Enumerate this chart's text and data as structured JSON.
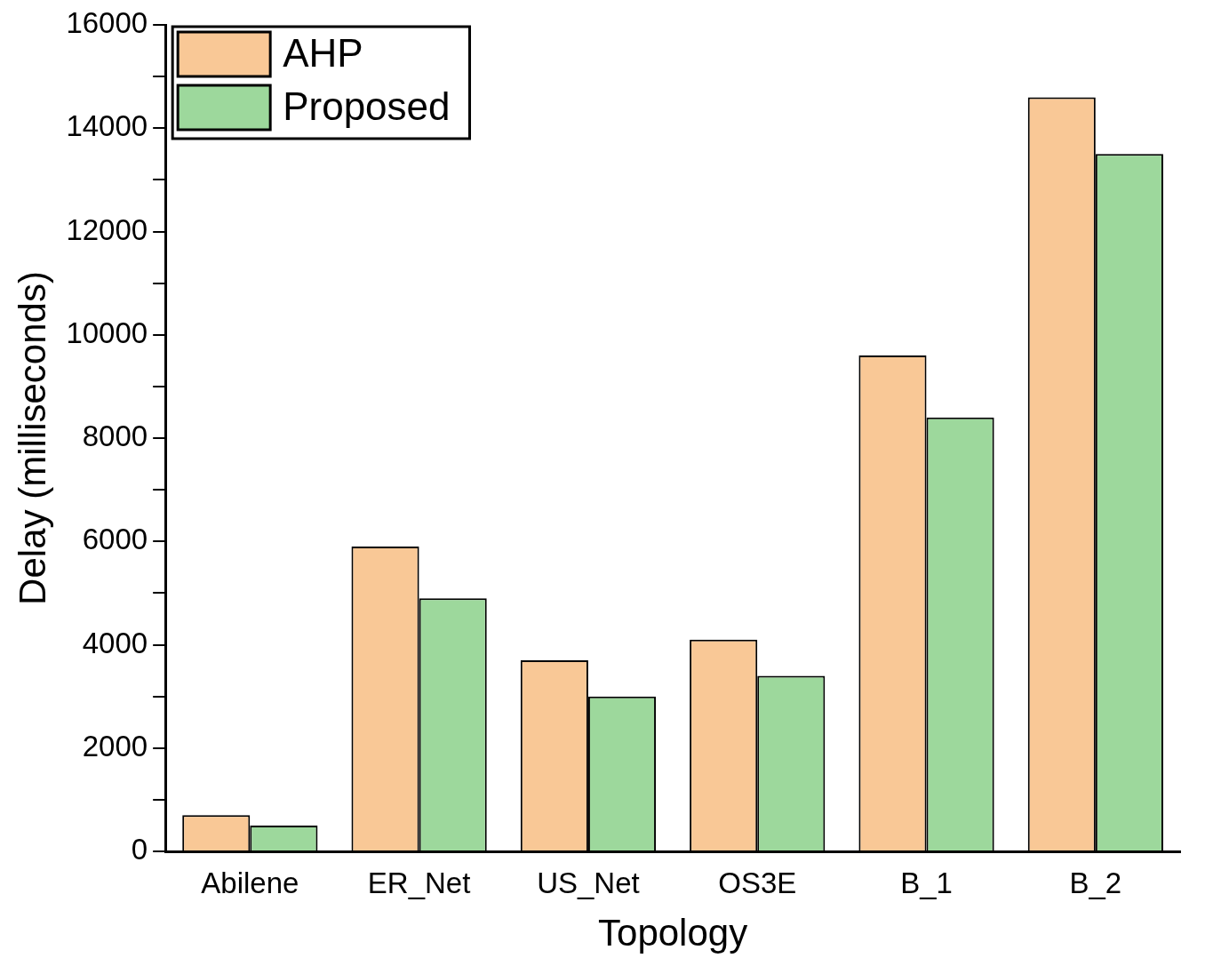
{
  "chart_data": {
    "type": "bar",
    "xlabel": "Topology",
    "ylabel": "Delay (milliseconds)",
    "categories": [
      "Abilene",
      "ER_Net",
      "US_Net",
      "OS3E",
      "B_1",
      "B_2"
    ],
    "series": [
      {
        "name": "AHP",
        "color": "#f9c896",
        "values": [
          700,
          5900,
          3700,
          4100,
          9600,
          14600
        ]
      },
      {
        "name": "Proposed",
        "color": "#9dd89c",
        "values": [
          500,
          4900,
          3000,
          3400,
          8400,
          13500
        ]
      }
    ],
    "ylim": [
      0,
      16000
    ],
    "yticks": [
      0,
      {
        "value": 1000,
        "label": null
      },
      2000,
      {
        "value": 3000,
        "label": null
      },
      4000,
      {
        "value": 5000,
        "label": null
      },
      6000,
      {
        "value": 7000,
        "label": null
      },
      8000,
      {
        "value": 9000,
        "label": null
      },
      10000,
      {
        "value": 11000,
        "label": null
      },
      12000,
      {
        "value": 13000,
        "label": null
      },
      14000,
      {
        "value": 15000,
        "label": null
      },
      16000
    ],
    "grid": false,
    "legend": "top left"
  }
}
